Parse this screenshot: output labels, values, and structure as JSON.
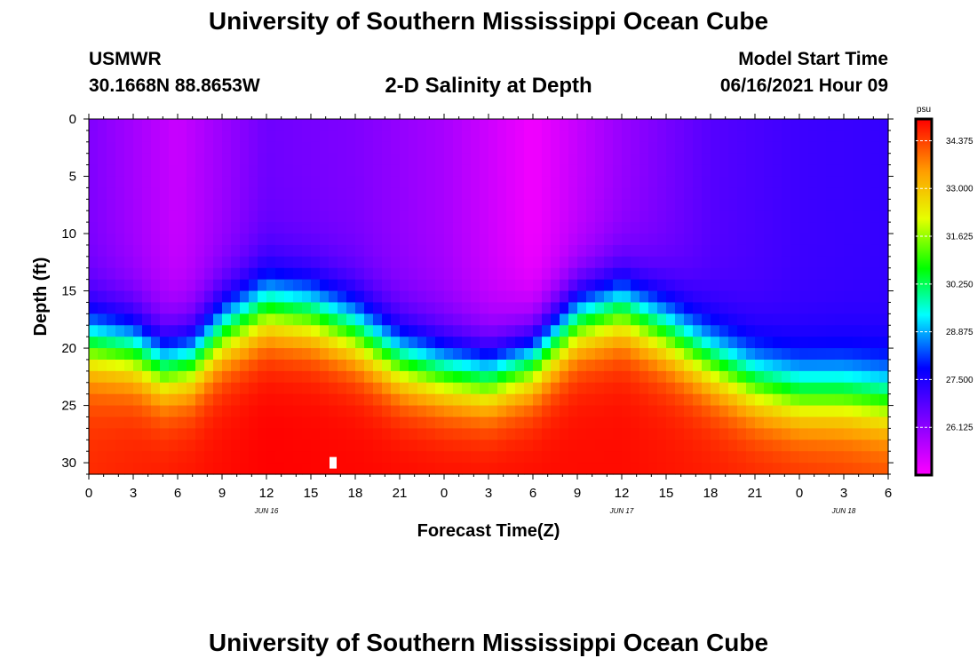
{
  "header": {
    "title": "University of Southern Mississippi Ocean Cube",
    "station": "USMWR",
    "coords": "30.1668N  88.8653W",
    "subtitle": "2-D Salinity at Depth",
    "model_start_label": "Model Start Time",
    "model_start_value": "06/16/2021 Hour 09"
  },
  "footer": {
    "title": "University of Southern Mississippi Ocean Cube"
  },
  "chart_data": {
    "type": "heatmap",
    "title": "2-D Salinity at Depth",
    "xlabel": "Forecast Time(Z)",
    "ylabel": "Depth (ft)",
    "x_hours_range": [
      0,
      54
    ],
    "y_range": [
      0,
      31
    ],
    "y_inverted": true,
    "x_tick_labels": [
      "0",
      "3",
      "6",
      "9",
      "12",
      "15",
      "18",
      "21",
      "0",
      "3",
      "6",
      "9",
      "12",
      "15",
      "18",
      "21",
      "0",
      "3",
      "6"
    ],
    "y_tick_labels": [
      "0",
      "5",
      "10",
      "15",
      "20",
      "25",
      "30"
    ],
    "y_tick_values": [
      0,
      5,
      10,
      15,
      20,
      25,
      30
    ],
    "date_labels": [
      {
        "text": "JUN 16",
        "hour": 12
      },
      {
        "text": "JUN 17",
        "hour": 36
      },
      {
        "text": "JUN 18",
        "hour": 51
      }
    ],
    "colorbar": {
      "unit": "psu",
      "min": 24.75,
      "max": 35.0,
      "tick_labels": [
        "34.375",
        "33.000",
        "31.625",
        "30.250",
        "28.875",
        "27.500",
        "26.125"
      ],
      "tick_values": [
        34.375,
        33.0,
        31.625,
        30.25,
        28.875,
        27.5,
        26.125
      ]
    },
    "interface_depth_ft": [
      {
        "hour": 0,
        "depth": 19.5
      },
      {
        "hour": 3,
        "depth": 20.0
      },
      {
        "hour": 5,
        "depth": 21.5
      },
      {
        "hour": 7,
        "depth": 21.0
      },
      {
        "hour": 9,
        "depth": 18.5
      },
      {
        "hour": 12,
        "depth": 16.5
      },
      {
        "hour": 15,
        "depth": 17.0
      },
      {
        "hour": 18,
        "depth": 18.5
      },
      {
        "hour": 21,
        "depth": 21.0
      },
      {
        "hour": 24,
        "depth": 22.0
      },
      {
        "hour": 27,
        "depth": 22.5
      },
      {
        "hour": 30,
        "depth": 21.0
      },
      {
        "hour": 33,
        "depth": 17.5
      },
      {
        "hour": 36,
        "depth": 16.5
      },
      {
        "hour": 39,
        "depth": 18.5
      },
      {
        "hour": 42,
        "depth": 21.0
      },
      {
        "hour": 45,
        "depth": 23.0
      },
      {
        "hour": 48,
        "depth": 24.0
      },
      {
        "hour": 51,
        "depth": 24.0
      },
      {
        "hour": 54,
        "depth": 24.5
      }
    ],
    "surface_salinity_psu": [
      {
        "hour": 0,
        "value": 26.3
      },
      {
        "hour": 6,
        "value": 25.4
      },
      {
        "hour": 12,
        "value": 26.5
      },
      {
        "hour": 18,
        "value": 26.3
      },
      {
        "hour": 24,
        "value": 25.8
      },
      {
        "hour": 30,
        "value": 24.9
      },
      {
        "hour": 36,
        "value": 26.0
      },
      {
        "hour": 42,
        "value": 26.8
      },
      {
        "hour": 48,
        "value": 27.1
      },
      {
        "hour": 54,
        "value": 27.2
      }
    ],
    "bottom_salinity_psu": [
      {
        "hour": 0,
        "value": 34.6
      },
      {
        "hour": 12,
        "value": 35.0
      },
      {
        "hour": 24,
        "value": 34.9
      },
      {
        "hour": 36,
        "value": 34.9
      },
      {
        "hour": 48,
        "value": 34.6
      },
      {
        "hour": 54,
        "value": 34.4
      }
    ],
    "gradient_width_ft": 7.5
  }
}
